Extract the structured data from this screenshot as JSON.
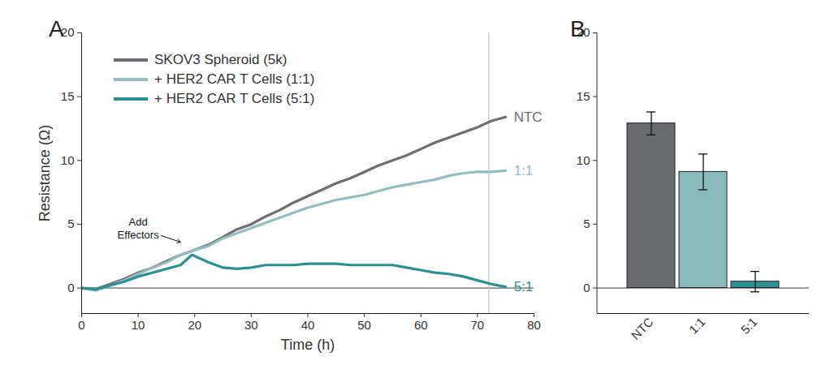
{
  "chart_data": [
    {
      "type": "line",
      "title": "A",
      "xlabel": "Time (h)",
      "ylabel": "Resistance (Ω)",
      "x": [
        0,
        2.5,
        5,
        7.5,
        10,
        12.5,
        15,
        17.5,
        19.5,
        22.5,
        25,
        27.5,
        30,
        32.5,
        35,
        37.5,
        40,
        42.5,
        45,
        47.5,
        50,
        52.5,
        55,
        57.5,
        60,
        62.5,
        65,
        67.5,
        70,
        72.5,
        75
      ],
      "series": [
        {
          "name": "SKOV3 Spheroid (5k)",
          "label": "NTC",
          "color": "#6d6e71",
          "values": [
            0,
            -0.1,
            0.3,
            0.7,
            1.2,
            1.6,
            2.1,
            2.6,
            2.9,
            3.4,
            4.0,
            4.6,
            5.0,
            5.6,
            6.1,
            6.7,
            7.2,
            7.7,
            8.2,
            8.6,
            9.1,
            9.6,
            10.0,
            10.4,
            10.9,
            11.4,
            11.8,
            12.2,
            12.6,
            13.1,
            13.4
          ]
        },
        {
          "name": "+ HER2 CAR T Cells (1:1)",
          "label": "1:1",
          "color": "#94bdc1",
          "values": [
            0,
            -0.2,
            0.2,
            0.6,
            1.1,
            1.6,
            2.0,
            2.6,
            2.9,
            3.3,
            3.9,
            4.3,
            4.7,
            5.1,
            5.5,
            5.9,
            6.3,
            6.6,
            6.9,
            7.1,
            7.3,
            7.6,
            7.9,
            8.1,
            8.3,
            8.5,
            8.8,
            9.0,
            9.1,
            9.1,
            9.2
          ]
        },
        {
          "name": "+ HER2 CAR T Cells (5:1)",
          "label": "5:1",
          "color": "#2d8f92",
          "values": [
            0,
            -0.1,
            0.2,
            0.5,
            0.9,
            1.2,
            1.5,
            1.8,
            2.6,
            2.0,
            1.6,
            1.5,
            1.6,
            1.8,
            1.8,
            1.8,
            1.9,
            1.9,
            1.9,
            1.8,
            1.8,
            1.8,
            1.8,
            1.6,
            1.4,
            1.2,
            1.1,
            0.9,
            0.6,
            0.3,
            0.1
          ]
        }
      ],
      "xlim": [
        0,
        80
      ],
      "xticks": [
        0,
        10,
        20,
        30,
        40,
        50,
        60,
        70,
        80
      ],
      "ylim": [
        -2,
        20
      ],
      "yticks": [
        0,
        5,
        10,
        15,
        20
      ],
      "vline": 72,
      "hline": 0,
      "annotations": [
        {
          "text": "Add\nEffectors",
          "text_x": 10,
          "text_y": 4.7,
          "x": 17.5,
          "y": 3.6
        }
      ],
      "legend": "top-left"
    },
    {
      "type": "bar",
      "title": "B",
      "categories": [
        "NTC",
        "1:1",
        "5:1"
      ],
      "values": [
        12.9,
        9.1,
        0.5
      ],
      "errors": [
        0.9,
        1.4,
        0.8
      ],
      "colors": [
        "#6a6b6f",
        "#8ab9bc",
        "#2e9294"
      ],
      "ylim": [
        -2,
        20
      ],
      "yticks": [
        0,
        5,
        10,
        15,
        20
      ],
      "hline": 0
    }
  ]
}
